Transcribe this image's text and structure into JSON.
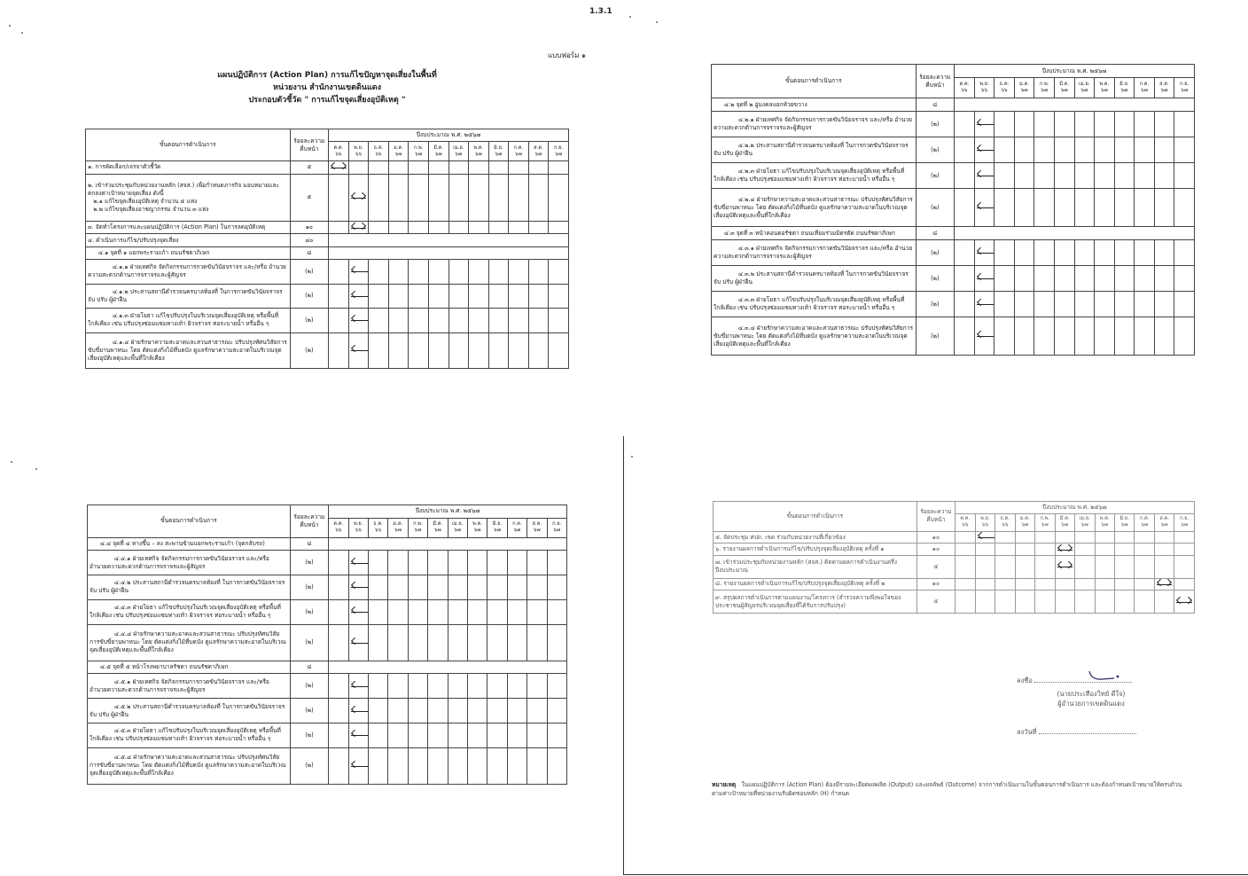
{
  "page_number": "1.3.1",
  "form_label": "แบบฟอร์ม ๑",
  "title": {
    "line1": "แผนปฏิบัติการ (Action Plan) การแก้ไขปัญหาจุดเสี่ยงในพื้นที่",
    "line2": "หน่วยงาน สำนักงานเขตดินแดง",
    "line3": "ประกอบตัวชี้วัด \" การแก้ไขจุดเสี่ยงอุบัติเหตุ \""
  },
  "header": {
    "steps": "ขั้นตอนการดำเนินการ",
    "progress": "ร้อยละความคืบหน้า",
    "fiscal_year": "ปีงบประมาณ พ.ศ. ๒๕๖๗",
    "months": [
      [
        "ต.ค.",
        "๖๖"
      ],
      [
        "พ.ย.",
        "๖๖"
      ],
      [
        "ธ.ค.",
        "๖๖"
      ],
      [
        "ม.ค.",
        "๖๗"
      ],
      [
        "ก.พ.",
        "๖๗"
      ],
      [
        "มี.ค.",
        "๖๗"
      ],
      [
        "เม.ย.",
        "๖๗"
      ],
      [
        "พ.ค.",
        "๖๗"
      ],
      [
        "มิ.ย.",
        "๖๗"
      ],
      [
        "ก.ค.",
        "๖๗"
      ],
      [
        "ส.ค.",
        "๖๗"
      ],
      [
        "ก.ย.",
        "๖๗"
      ]
    ]
  },
  "tables": [
    {
      "rows": [
        {
          "label": "๑. การคัดเลือก/เจรจาตัวชี้วัด",
          "weight": "๕",
          "indent": 0,
          "bar": [
            0,
            0
          ]
        },
        {
          "label": "๒. เข้าร่วมประชุมกับหน่วยงานหลัก (สจส.) เพื่อกำหนดภารกิจ มอบหมายและตกลงค่าเป้าหมายจุดเสี่ยง ดังนี้\n   ๒.๑ แก้ไขจุดเสี่ยงอุบัติเหตุ จำนวน ๕ แห่ง\n   ๒.๒ แก้ไขจุดเสี่ยงอาชญากรรม จำนวน ๓ แห่ง",
          "weight": "๕",
          "indent": 0,
          "bar": [
            1,
            1
          ]
        },
        {
          "label": "๓. จัดทำโครงการและแผนปฏิบัติการ (Action Plan) ในการลดอุบัติเหตุ",
          "weight": "๑๐",
          "indent": 0,
          "bar": [
            1,
            1
          ]
        },
        {
          "label": "๔. ดำเนินการแก้ไข/ปรับปรุงจุดเสี่ยง",
          "weight": "๔๐",
          "indent": 0,
          "section": true
        },
        {
          "label": "๔.๑ จุดที่ ๑ แยกพระรามเก้า ถนนรัชดาภิเษก",
          "weight": "๘",
          "indent": 1,
          "section": true
        },
        {
          "label": "๔.๑.๑ ฝ่ายเทศกิจ จัดกิจกรรมการกวดขันวินัยจราจร และ/หรือ อำนวยความสะดวกด้านการจราจรและผู้สัญจร",
          "weight": "(๒)",
          "indent": 2,
          "bar": [
            1,
            10
          ]
        },
        {
          "label": "๔.๑.๒ ประสานสถานีตำรวจนครบาลท้องที่ ในการกวดขันวินัยจราจร จับ ปรับ ผู้ฝ่าฝืน",
          "weight": "(๒)",
          "indent": 2,
          "bar": [
            1,
            10
          ]
        },
        {
          "label": "๔.๑.๓ ฝ่ายโยธา แก้ไขปรับปรุงในบริเวณจุดเสี่ยงอุบัติเหตุ หรือพื้นที่ใกล้เคียง เช่น ปรับปรุงซ่อมแซมทางเท้า ผิวจราจร ท่อระบายน้ำ หรืออื่น ๆ",
          "weight": "(๒)",
          "indent": 2,
          "bar": [
            1,
            10
          ]
        },
        {
          "label": "๔.๑.๔ ฝ่ายรักษาความสะอาดและสวนสาธารณะ ปรับปรุงทัศนวิสัยการขับขี่ยานพาหนะ โดย ตัดแต่งกิ่งไม้ที่บดบัง ดูแลรักษาความสะอาดในบริเวณจุดเสี่ยงอุบัติเหตุและพื้นที่ใกล้เคียง",
          "weight": "(๒)",
          "indent": 2,
          "bar": [
            1,
            10
          ]
        }
      ]
    },
    {
      "rows": [
        {
          "label": "๔.๒ จุดที่ ๒ อู่มงคลแยกห้วยขวาง",
          "weight": "๘",
          "indent": 1,
          "section": true
        },
        {
          "label": "๔.๒.๑ ฝ่ายเทศกิจ จัดกิจกรรมการกวดขันวินัยจราจร และ/หรือ อำนวยความสะดวกด้านการจราจรและผู้สัญจร",
          "weight": "(๒)",
          "indent": 2,
          "bar": [
            1,
            10
          ]
        },
        {
          "label": "๔.๒.๒ ประสานสถานีตำรวจนครบาลท้องที่ ในการกวดขันวินัยจราจร จับ ปรับ ผู้ฝ่าฝืน",
          "weight": "(๒)",
          "indent": 2,
          "bar": [
            1,
            10
          ]
        },
        {
          "label": "๔.๒.๓ ฝ่ายโยธา แก้ไขปรับปรุงในบริเวณจุดเสี่ยงอุบัติเหตุ หรือพื้นที่ใกล้เคียง เช่น ปรับปรุงซ่อมแซมทางเท้า ผิวจราจร ท่อระบายน้ำ หรืออื่น ๆ",
          "weight": "(๒)",
          "indent": 2,
          "bar": [
            1,
            10
          ]
        },
        {
          "label": "๔.๒.๔ ฝ่ายรักษาความสะอาดและสวนสาธารณะ ปรับปรุงทัศนวิสัยการขับขี่ยานพาหนะ โดย ตัดแต่งกิ่งไม้ที่บดบัง ดูแลรักษาความสะอาดในบริเวณจุดเสี่ยงอุบัติเหตุและพื้นที่ใกล้เคียง",
          "weight": "(๒)",
          "indent": 2,
          "bar": [
            1,
            10
          ]
        },
        {
          "label": "๔.๓ จุดที่ ๓ หน้าคอนดอรัชดา ถนนเทียมร่วมมิตรตัด ถนนรัชดาภิเษก",
          "weight": "๘",
          "indent": 1,
          "section": true
        },
        {
          "label": "๔.๓.๑ ฝ่ายเทศกิจ จัดกิจกรรมการกวดขันวินัยจราจร และ/หรือ อำนวยความสะดวกด้านการจราจรและผู้สัญจร",
          "weight": "(๒)",
          "indent": 2,
          "bar": [
            1,
            10
          ]
        },
        {
          "label": "๔.๓.๒ ประสานสถานีตำรวจนครบาลท้องที่ ในการกวดขันวินัยจราจร จับ ปรับ ผู้ฝ่าฝืน",
          "weight": "(๒)",
          "indent": 2,
          "bar": [
            1,
            10
          ]
        },
        {
          "label": "๔.๓.๓ ฝ่ายโยธา แก้ไขปรับปรุงในบริเวณจุดเสี่ยงอุบัติเหตุ หรือพื้นที่ใกล้เคียง เช่น ปรับปรุงซ่อมแซมทางเท้า ผิวจราจร ท่อระบายน้ำ หรืออื่น ๆ",
          "weight": "(๒)",
          "indent": 2,
          "bar": [
            1,
            10
          ]
        },
        {
          "label": "๔.๓.๔ ฝ่ายรักษาความสะอาดและสวนสาธารณะ ปรับปรุงทัศนวิสัยการขับขี่ยานพาหนะ โดย ตัดแต่งกิ่งไม้ที่บดบัง ดูแลรักษาความสะอาดในบริเวณจุดเสี่ยงอุบัติเหตุและพื้นที่ใกล้เคียง",
          "weight": "(๒)",
          "indent": 2,
          "bar": [
            1,
            10
          ]
        }
      ]
    },
    {
      "rows": [
        {
          "label": "๔.๔ จุดที่ ๔ ทางขึ้น – ลง สะพานข้ามแยกพระรามเก้า (จุดกลับรถ)",
          "weight": "๘",
          "indent": 1,
          "section": true
        },
        {
          "label": "๔.๔.๑ ฝ่ายเทศกิจ จัดกิจกรรมการกวดขันวินัยจราจร และ/หรือ อำนวยความสะดวกด้านการจราจรและผู้สัญจร",
          "weight": "(๒)",
          "indent": 2,
          "bar": [
            1,
            10
          ]
        },
        {
          "label": "๔.๔.๒ ประสานสถานีตำรวจนครบาลท้องที่ ในการกวดขันวินัยจราจร จับ ปรับ ผู้ฝ่าฝืน",
          "weight": "(๒)",
          "indent": 2,
          "bar": [
            1,
            10
          ]
        },
        {
          "label": "๔.๔.๓ ฝ่ายโยธา แก้ไขปรับปรุงในบริเวณจุดเสี่ยงอุบัติเหตุ หรือพื้นที่ใกล้เคียง เช่น ปรับปรุงซ่อมแซมทางเท้า ผิวจราจร ท่อระบายน้ำ หรืออื่น ๆ",
          "weight": "(๒)",
          "indent": 2,
          "bar": [
            1,
            10
          ]
        },
        {
          "label": "๔.๔.๔ ฝ่ายรักษาความสะอาดและสวนสาธารณะ ปรับปรุงทัศนวิสัยการขับขี่ยานพาหนะ โดย ตัดแต่งกิ่งไม้ที่บดบัง ดูแลรักษาความสะอาดในบริเวณจุดเสี่ยงอุบัติเหตุและพื้นที่ใกล้เคียง",
          "weight": "(๒)",
          "indent": 2,
          "bar": [
            1,
            10
          ]
        },
        {
          "label": "๔.๕ จุดที่ ๕ หน้าโรงพยาบาลรัชดา ถนนรัชดาภิเษก",
          "weight": "๘",
          "indent": 1,
          "section": true
        },
        {
          "label": "๔.๕.๑ ฝ่ายเทศกิจ จัดกิจกรรมการกวดขันวินัยจราจร และ/หรือ อำนวยความสะดวกด้านการจราจรและผู้สัญจร",
          "weight": "(๒)",
          "indent": 2,
          "bar": [
            1,
            10
          ]
        },
        {
          "label": "๔.๕.๒ ประสานสถานีตำรวจนครบาลท้องที่ ในการกวดขันวินัยจราจร จับ ปรับ ผู้ฝ่าฝืน",
          "weight": "(๒)",
          "indent": 2,
          "bar": [
            1,
            10
          ]
        },
        {
          "label": "๔.๕.๓ ฝ่ายโยธา แก้ไขปรับปรุงในบริเวณจุดเสี่ยงอุบัติเหตุ หรือพื้นที่ใกล้เคียง เช่น ปรับปรุงซ่อมแซมทางเท้า ผิวจราจร ท่อระบายน้ำ หรืออื่น ๆ",
          "weight": "(๒)",
          "indent": 2,
          "bar": [
            1,
            10
          ]
        },
        {
          "label": "๔.๕.๔ ฝ่ายรักษาความสะอาดและสวนสาธารณะ ปรับปรุงทัศนวิสัยการขับขี่ยานพาหนะ โดย ตัดแต่งกิ่งไม้ที่บดบัง ดูแลรักษาความสะอาดในบริเวณจุดเสี่ยงอุบัติเหตุและพื้นที่ใกล้เคียง",
          "weight": "(๒)",
          "indent": 2,
          "bar": [
            1,
            10
          ]
        }
      ]
    },
    {
      "rows": [
        {
          "label": "๕. จัดประชุม ศปถ. เขต ร่วมกับหน่วยงานที่เกี่ยวข้อง",
          "weight": "๑๐",
          "indent": 0,
          "bar": [
            1,
            11
          ]
        },
        {
          "label": "๖. รายงานผลการดำเนินการแก้ไข/ปรับปรุงจุดเสี่ยงอุบัติเหตุ ครั้งที่ ๑",
          "weight": "๑๐",
          "indent": 0,
          "bar": [
            5,
            5
          ]
        },
        {
          "label": "๗. เข้าร่วมประชุมกับหน่วยงานหลัก (สจส.) ติดตามผลการดำเนินงานครึ่งปีงบประมาณ",
          "weight": "๕",
          "indent": 0,
          "bar": [
            5,
            5
          ]
        },
        {
          "label": "๘. รายงานผลการดำเนินการแก้ไข/ปรับปรุงจุดเสี่ยงอุบัติเหตุ ครั้งที่ ๒",
          "weight": "๑๐",
          "indent": 0,
          "bar": [
            10,
            10
          ]
        },
        {
          "label": "๙. สรุปผลการดำเนินการตามแผนงาน/โครงการ (สำรวจความพึงพอใจของประชาชนผู้สัญจรบริเวณจุดเสี่ยงที่ได้รับการปรับปรุง)",
          "weight": "๕",
          "indent": 0,
          "bar": [
            11,
            11
          ]
        }
      ]
    }
  ],
  "signature": {
    "sign_label": "ลงชื่อ",
    "name": "(นายประเทืองวิทย์ ดีใจ)",
    "position": "ผู้อำนวยการเขตดินแดง",
    "date_label": "ลงวันที่"
  },
  "note": {
    "label": "หมายเหตุ",
    "text": "ในแผนปฏิบัติการ (Action Plan) ต้องมีรายละเอียดผลผลิต (Output) และผลลัพธ์ (Outcome) จากการดำเนินงานในขั้นตอนการดำเนินการ และต้องกำหนดเป้าหมายให้ครบถ้วนตามค่าเป้าหมายที่หน่วยงานรับผิดชอบหลัก (H) กำหนด"
  }
}
